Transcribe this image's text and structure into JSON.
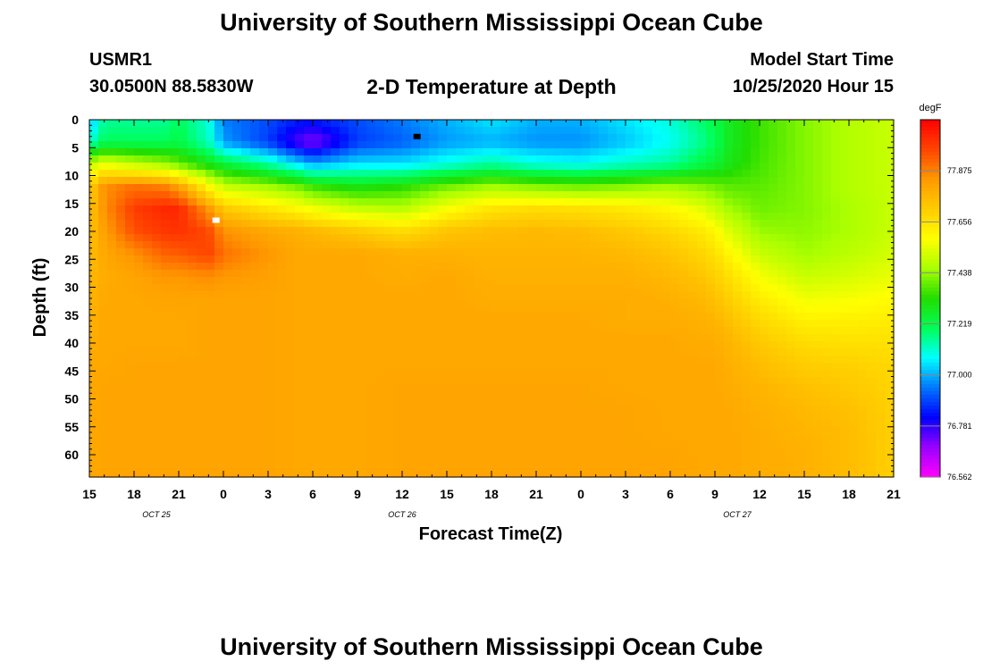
{
  "header": {
    "title": "University of Southern Mississippi Ocean Cube",
    "station_id": "USMR1",
    "station_coords": "30.0500N 88.5830W",
    "model_start_label": "Model Start Time",
    "model_start_value": "10/25/2020 Hour 15"
  },
  "footer": {
    "title": "University of Southern Mississippi Ocean Cube"
  },
  "chart_data": {
    "type": "heatmap",
    "title": "2-D Temperature at Depth",
    "xlabel": "Forecast Time(Z)",
    "ylabel": "Depth (ft)",
    "x_tick_labels": [
      "15",
      "18",
      "21",
      "0",
      "3",
      "6",
      "9",
      "12",
      "15",
      "18",
      "21",
      "0",
      "3",
      "6",
      "9",
      "12",
      "15",
      "18",
      "21"
    ],
    "x_hours": [
      0,
      3,
      6,
      9,
      12,
      15,
      18,
      21,
      24,
      27,
      30,
      33,
      36,
      39,
      42,
      45,
      48,
      51,
      54
    ],
    "x_range_hours": [
      0,
      54
    ],
    "date_labels": [
      {
        "label": "OCT 25",
        "hour": 4.5
      },
      {
        "label": "OCT 26",
        "hour": 21
      },
      {
        "label": "OCT 27",
        "hour": 43.5
      }
    ],
    "y_tick_values": [
      0,
      5,
      10,
      15,
      20,
      25,
      30,
      35,
      40,
      45,
      50,
      55,
      60
    ],
    "ylim": [
      0,
      64
    ],
    "colorbar": {
      "unit": "degF",
      "min": 76.562,
      "max": 78.094,
      "tick_labels": [
        "77.875",
        "77.656",
        "77.438",
        "77.219",
        "77.000",
        "76.781",
        "76.562"
      ],
      "colors": [
        "#ff00ff",
        "#9900ff",
        "#0000ff",
        "#0077ff",
        "#00ffff",
        "#00ff55",
        "#22dd00",
        "#aaff00",
        "#ffff00",
        "#ffcc00",
        "#ff9900",
        "#ff4400",
        "#ff0000"
      ]
    },
    "markers": [
      {
        "name": "min-temperature-marker",
        "hour": 22,
        "depth": 3,
        "color": "#000000"
      },
      {
        "name": "max-temperature-marker",
        "hour": 8.5,
        "depth": 18,
        "color": "#ffffff"
      }
    ],
    "profile_hours": [
      0,
      1,
      3,
      5,
      6,
      8,
      9,
      12,
      14,
      15,
      18,
      21,
      24,
      27,
      30,
      33,
      36,
      39,
      41,
      42,
      43,
      45,
      48,
      51,
      54
    ],
    "profile_depths": [
      0,
      4,
      8,
      12,
      16,
      20,
      24,
      28,
      32,
      36,
      40,
      44,
      48,
      52,
      56,
      60,
      64
    ],
    "temperature_degF": [
      [
        77.0,
        77.1,
        77.5,
        77.7,
        77.73,
        77.74,
        77.75,
        77.76,
        77.77,
        77.78,
        77.79,
        77.8,
        77.8,
        77.8,
        77.8,
        77.8,
        77.8
      ],
      [
        77.15,
        77.2,
        77.55,
        77.85,
        77.85,
        77.82,
        77.8,
        77.79,
        77.8,
        77.8,
        77.8,
        77.8,
        77.81,
        77.81,
        77.81,
        77.81,
        77.81
      ],
      [
        77.15,
        77.2,
        77.5,
        77.9,
        77.98,
        77.95,
        77.85,
        77.81,
        77.8,
        77.8,
        77.8,
        77.81,
        77.81,
        77.81,
        77.81,
        77.81,
        77.81
      ],
      [
        77.15,
        77.2,
        77.45,
        77.88,
        78.02,
        77.99,
        77.92,
        77.84,
        77.81,
        77.8,
        77.8,
        77.81,
        77.81,
        77.81,
        77.81,
        77.81,
        77.81
      ],
      [
        77.2,
        77.22,
        77.4,
        77.82,
        78.02,
        78.0,
        77.93,
        77.84,
        77.81,
        77.8,
        77.8,
        77.81,
        77.81,
        77.81,
        77.81,
        77.81,
        77.81
      ],
      [
        77.1,
        77.12,
        77.3,
        77.6,
        77.84,
        77.96,
        77.97,
        77.86,
        77.81,
        77.81,
        77.81,
        77.81,
        77.81,
        77.81,
        77.81,
        77.81,
        77.81
      ],
      [
        76.95,
        76.98,
        77.25,
        77.5,
        77.72,
        77.85,
        77.9,
        77.84,
        77.81,
        77.81,
        77.81,
        77.81,
        77.81,
        77.81,
        77.81,
        77.81,
        77.81
      ],
      [
        76.9,
        76.88,
        77.15,
        77.45,
        77.65,
        77.8,
        77.84,
        77.82,
        77.81,
        77.81,
        77.81,
        77.81,
        77.81,
        77.81,
        77.81,
        77.81,
        77.81
      ],
      [
        76.85,
        76.75,
        77.05,
        77.4,
        77.6,
        77.78,
        77.8,
        77.8,
        77.8,
        77.8,
        77.8,
        77.8,
        77.8,
        77.8,
        77.8,
        77.8,
        77.8
      ],
      [
        76.85,
        76.7,
        77.0,
        77.35,
        77.57,
        77.76,
        77.8,
        77.8,
        77.8,
        77.8,
        77.8,
        77.8,
        77.8,
        77.8,
        77.8,
        77.8,
        77.8
      ],
      [
        76.9,
        76.88,
        77.05,
        77.3,
        77.5,
        77.72,
        77.8,
        77.8,
        77.8,
        77.8,
        77.8,
        77.8,
        77.8,
        77.8,
        77.8,
        77.8,
        77.8
      ],
      [
        76.95,
        76.92,
        77.05,
        77.33,
        77.48,
        77.67,
        77.78,
        77.79,
        77.8,
        77.8,
        77.8,
        77.8,
        77.81,
        77.81,
        77.81,
        77.81,
        77.81
      ],
      [
        77.0,
        76.98,
        77.1,
        77.4,
        77.58,
        77.73,
        77.78,
        77.8,
        77.8,
        77.8,
        77.8,
        77.8,
        77.81,
        77.81,
        77.81,
        77.81,
        77.81
      ],
      [
        77.05,
        77.0,
        77.15,
        77.45,
        77.65,
        77.75,
        77.77,
        77.78,
        77.79,
        77.8,
        77.8,
        77.8,
        77.81,
        77.81,
        77.81,
        77.81,
        77.81
      ],
      [
        77.0,
        76.97,
        77.1,
        77.42,
        77.67,
        77.76,
        77.77,
        77.78,
        77.79,
        77.8,
        77.8,
        77.8,
        77.81,
        77.81,
        77.81,
        77.81,
        77.81
      ],
      [
        77.0,
        76.97,
        77.08,
        77.4,
        77.66,
        77.75,
        77.77,
        77.78,
        77.79,
        77.8,
        77.8,
        77.8,
        77.81,
        77.81,
        77.81,
        77.81,
        77.81
      ],
      [
        77.05,
        77.02,
        77.12,
        77.42,
        77.64,
        77.72,
        77.76,
        77.78,
        77.79,
        77.79,
        77.8,
        77.8,
        77.8,
        77.81,
        77.81,
        77.81,
        77.81
      ],
      [
        77.1,
        77.08,
        77.15,
        77.45,
        77.6,
        77.68,
        77.73,
        77.76,
        77.78,
        77.79,
        77.8,
        77.8,
        77.8,
        77.8,
        77.8,
        77.81,
        77.81
      ],
      [
        77.18,
        77.15,
        77.22,
        77.42,
        77.55,
        77.64,
        77.69,
        77.73,
        77.76,
        77.78,
        77.79,
        77.8,
        77.8,
        77.8,
        77.8,
        77.8,
        77.8
      ],
      [
        77.22,
        77.2,
        77.25,
        77.4,
        77.5,
        77.6,
        77.66,
        77.7,
        77.74,
        77.77,
        77.79,
        77.8,
        77.8,
        77.8,
        77.8,
        77.8,
        77.8
      ],
      [
        77.28,
        77.28,
        77.3,
        77.38,
        77.45,
        77.53,
        77.6,
        77.66,
        77.7,
        77.74,
        77.77,
        77.78,
        77.79,
        77.8,
        77.8,
        77.8,
        77.8
      ],
      [
        77.35,
        77.35,
        77.36,
        77.38,
        77.4,
        77.44,
        77.5,
        77.57,
        77.63,
        77.68,
        77.72,
        77.75,
        77.77,
        77.78,
        77.79,
        77.79,
        77.79
      ],
      [
        77.42,
        77.42,
        77.42,
        77.42,
        77.42,
        77.43,
        77.45,
        77.5,
        77.56,
        77.62,
        77.67,
        77.71,
        77.74,
        77.76,
        77.77,
        77.78,
        77.78
      ],
      [
        77.47,
        77.47,
        77.47,
        77.47,
        77.46,
        77.46,
        77.48,
        77.52,
        77.57,
        77.62,
        77.66,
        77.7,
        77.72,
        77.74,
        77.75,
        77.75,
        77.75
      ],
      [
        77.5,
        77.5,
        77.5,
        77.5,
        77.5,
        77.5,
        77.52,
        77.55,
        77.59,
        77.63,
        77.66,
        77.68,
        77.69,
        77.7,
        77.7,
        77.7,
        77.7
      ]
    ]
  }
}
